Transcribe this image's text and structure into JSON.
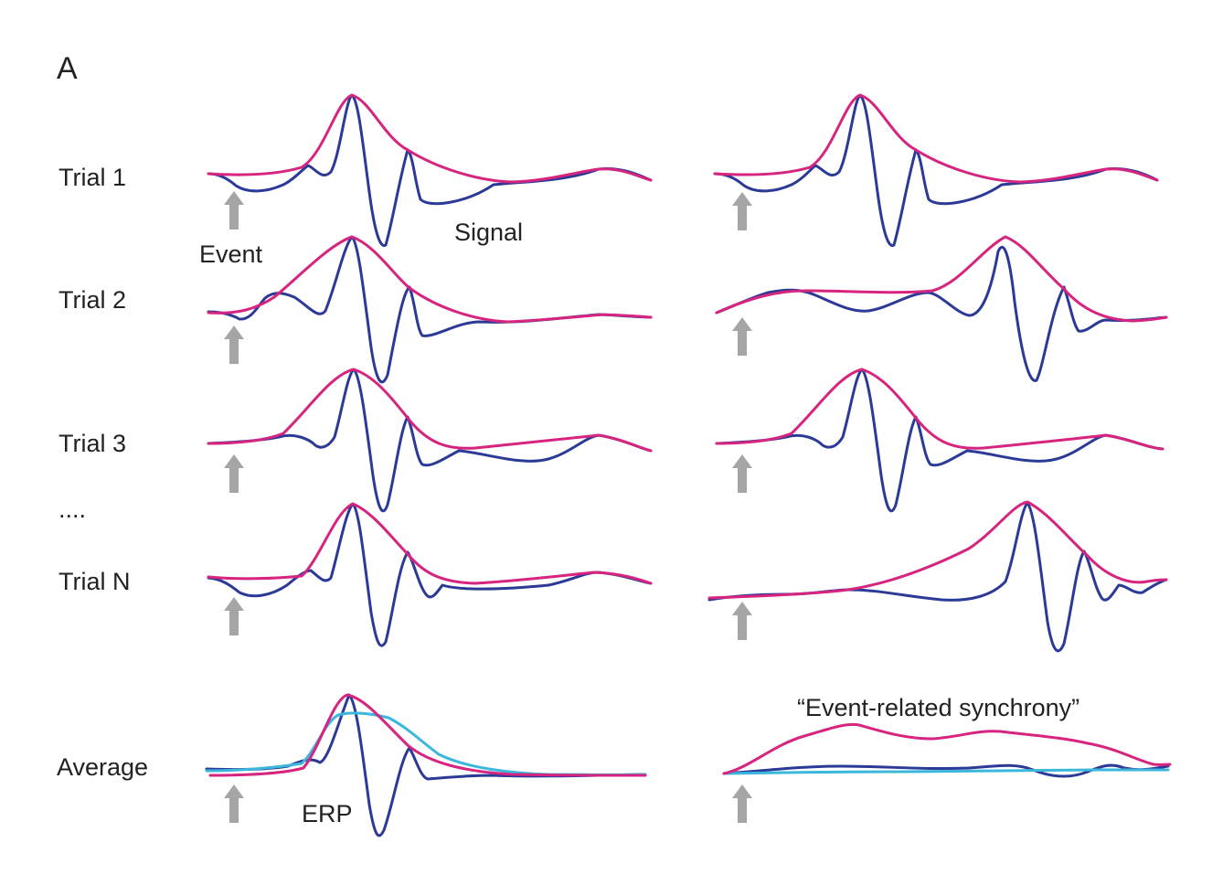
{
  "panel_label": "A",
  "rows": [
    {
      "label": "Trial 1"
    },
    {
      "label": "Trial 2"
    },
    {
      "label": "Trial 3"
    },
    {
      "label": "...."
    },
    {
      "label": "Trial N"
    },
    {
      "label": "Average"
    }
  ],
  "annotations": {
    "event": "Event",
    "signal": "Signal",
    "erp": "ERP",
    "synchrony": "“Event-related synchrony”"
  },
  "colors": {
    "signal": "#2b3a97",
    "envelope": "#d6247f",
    "average_envelope": "#3bb6dc",
    "arrow": "#a5a5a8"
  },
  "icons": {
    "event_marker": "up-arrow-icon"
  }
}
